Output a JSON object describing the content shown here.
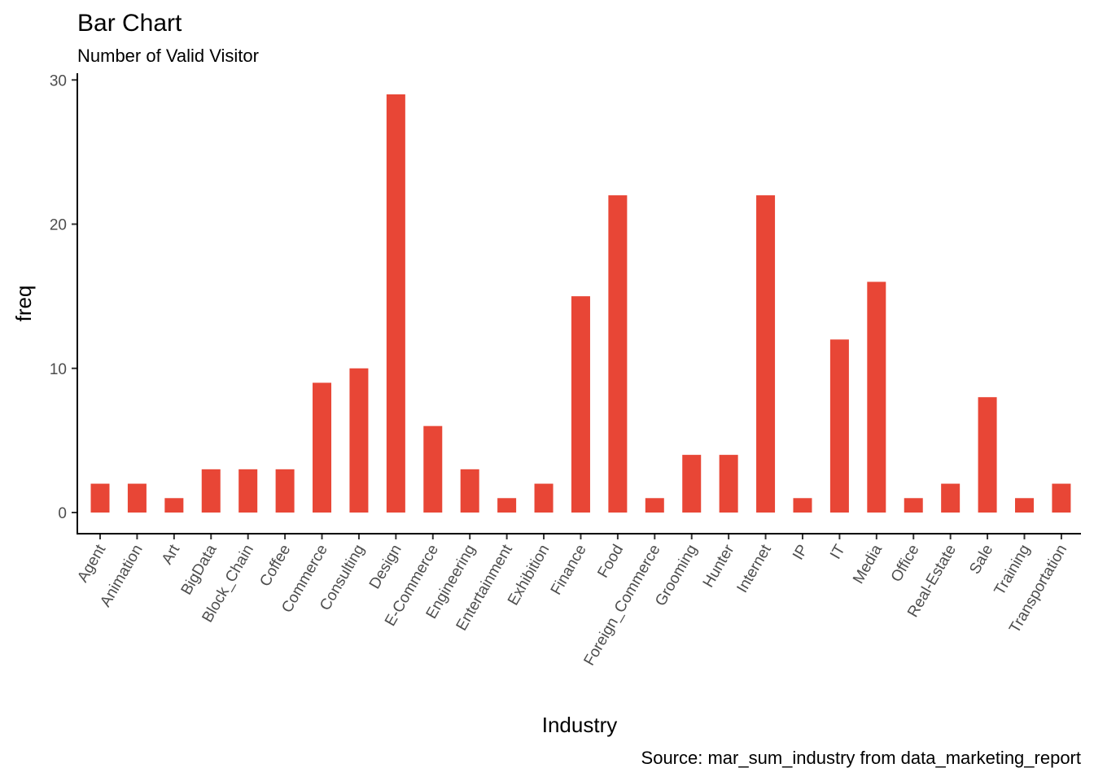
{
  "chart_data": {
    "type": "bar",
    "title": "Bar Chart",
    "subtitle": "Number of Valid Visitor",
    "xlabel": "Industry",
    "ylabel": "freq",
    "caption": "Source: mar_sum_industry from data_marketing_report",
    "categories": [
      "Agent",
      "Animation",
      "Art",
      "BigData",
      "Block_Chain",
      "Coffee",
      "Commerce",
      "Consulting",
      "Design",
      "E-Commerce",
      "Engineering",
      "Entertainment",
      "Exhibition",
      "Finance",
      "Food",
      "Foreign_Commerce",
      "Grooming",
      "Hunter",
      "Internet",
      "IP",
      "IT",
      "Media",
      "Office",
      "Real-Estate",
      "Sale",
      "Training",
      "Transportation"
    ],
    "values": [
      2,
      2,
      1,
      3,
      3,
      3,
      9,
      10,
      29,
      6,
      3,
      1,
      2,
      15,
      22,
      1,
      4,
      4,
      22,
      1,
      12,
      16,
      1,
      2,
      8,
      1,
      2
    ],
    "ylim": [
      0,
      30
    ],
    "yticks": [
      0,
      10,
      20,
      30
    ],
    "grid": false,
    "legend": "none",
    "bar_color": "#E84636"
  }
}
